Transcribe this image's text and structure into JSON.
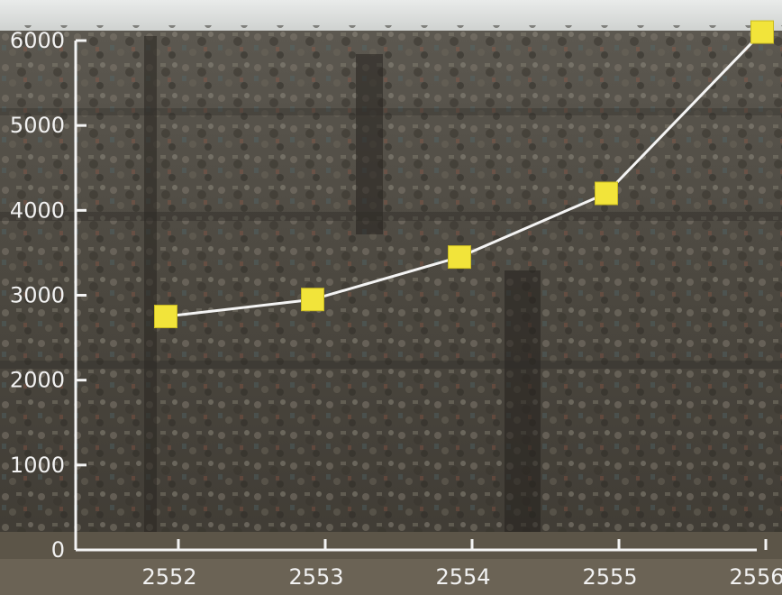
{
  "chart_data": {
    "type": "line",
    "title": "",
    "xlabel": "",
    "ylabel": "",
    "x": [
      "2552",
      "2553",
      "2554",
      "2555",
      "2556"
    ],
    "values": [
      2750,
      2950,
      3450,
      4200,
      6100
    ],
    "yticks": [
      "0",
      "1000",
      "2000",
      "3000",
      "4000",
      "5000",
      "6000"
    ],
    "ylim": [
      0,
      6000
    ],
    "grid": false,
    "legend": "none",
    "colors": {
      "line": "#f4f4f4",
      "marker": "#f2e43a",
      "axis": "#f4f4f4",
      "tick_text": "#f2f2f2"
    }
  }
}
